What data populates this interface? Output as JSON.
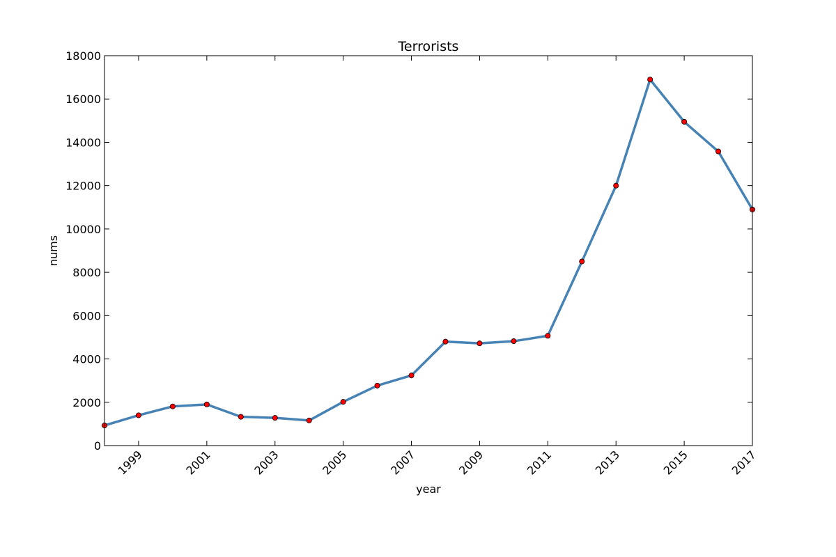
{
  "chart_data": {
    "type": "line",
    "title": "Terrorists",
    "xlabel": "year",
    "ylabel": "nums",
    "x": [
      1998,
      1999,
      2000,
      2001,
      2002,
      2003,
      2004,
      2005,
      2006,
      2007,
      2008,
      2009,
      2010,
      2011,
      2012,
      2013,
      2014,
      2015,
      2016,
      2017
    ],
    "series": [
      {
        "values": [
          930,
          1400,
          1810,
          1900,
          1330,
          1280,
          1160,
          2020,
          2770,
          3240,
          4800,
          4720,
          4820,
          5070,
          8500,
          12000,
          16900,
          14950,
          13580,
          10900
        ]
      }
    ],
    "xlim": [
      1998,
      2017
    ],
    "ylim": [
      0,
      18000
    ],
    "xticks": [
      1999,
      2001,
      2003,
      2005,
      2007,
      2009,
      2011,
      2013,
      2015,
      2017
    ],
    "yticks": [
      0,
      2000,
      4000,
      6000,
      8000,
      10000,
      12000,
      14000,
      16000,
      18000
    ],
    "grid": false,
    "line_color": "#4682b4",
    "marker_color": "#ff0000"
  }
}
